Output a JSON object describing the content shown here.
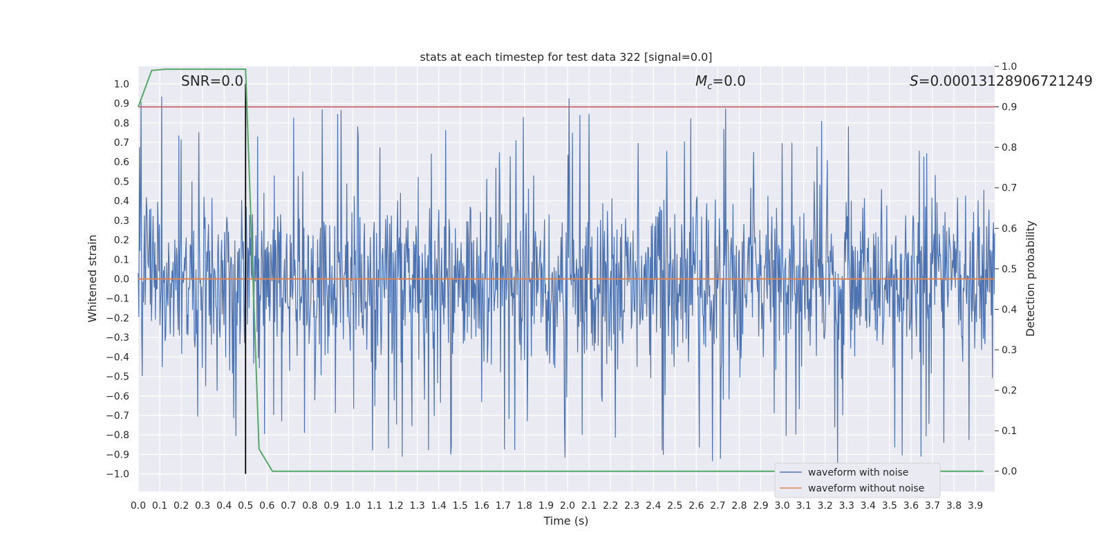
{
  "chart_data": {
    "type": "line",
    "title": "stats at each timestep for test data 322 [signal=0.0]",
    "xlabel": "Time (s)",
    "ylabel": "Whitened strain",
    "y2label": "Detection probability",
    "xlim": [
      0.0,
      3.99
    ],
    "ylim": [
      -1.09,
      1.09
    ],
    "y2lim": [
      -0.05,
      1.0
    ],
    "x_ticks": [
      "0.0",
      "0.1",
      "0.2",
      "0.3",
      "0.4",
      "0.5",
      "0.6",
      "0.7",
      "0.8",
      "0.9",
      "1.0",
      "1.1",
      "1.2",
      "1.3",
      "1.4",
      "1.5",
      "1.6",
      "1.7",
      "1.8",
      "1.9",
      "2.0",
      "2.1",
      "2.2",
      "2.3",
      "2.4",
      "2.5",
      "2.6",
      "2.7",
      "2.8",
      "2.9",
      "3.0",
      "3.1",
      "3.2",
      "3.3",
      "3.4",
      "3.5",
      "3.6",
      "3.7",
      "3.8",
      "3.9"
    ],
    "y_ticks": [
      "1.0",
      "0.9",
      "0.8",
      "0.7",
      "0.6",
      "0.5",
      "0.4",
      "0.3",
      "0.2",
      "0.1",
      "0.0",
      "−0.1",
      "−0.2",
      "−0.3",
      "−0.4",
      "−0.5",
      "−0.6",
      "−0.7",
      "−0.8",
      "−0.9",
      "−1.0"
    ],
    "y2_ticks": [
      "1.0",
      "0.9",
      "0.8",
      "0.7",
      "0.6",
      "0.5",
      "0.4",
      "0.3",
      "0.2",
      "0.1",
      "0.0"
    ],
    "grid": true,
    "legend_position": "lower-right",
    "annotations": {
      "snr": "SNR=0.0",
      "mc_symbol": "M",
      "mc_sub": "c",
      "mc_value": "=0.0",
      "s_symbol": "S",
      "s_value": "=0.00013128906721249"
    },
    "series": [
      {
        "name": "waveform with noise",
        "color": "#4c72b0",
        "style": "dense-noise",
        "typical_amplitude": 0.35,
        "peak_amplitude": 0.95
      },
      {
        "name": "waveform without noise",
        "color": "#dd8452",
        "values_constant": 0.0
      }
    ],
    "detection_probability": {
      "color": "#55a868",
      "x": [
        0.0,
        0.0625,
        0.125,
        0.1875,
        0.25,
        0.3125,
        0.375,
        0.4375,
        0.5,
        0.5625,
        0.625,
        0.6875,
        0.75,
        1.0,
        1.5,
        2.0,
        2.5,
        3.0,
        3.5,
        3.9375
      ],
      "y": [
        0.9,
        0.99,
        0.993,
        0.993,
        0.993,
        0.993,
        0.993,
        0.993,
        0.993,
        0.055,
        0.0,
        0.0,
        0.0,
        0.0,
        0.0,
        0.0,
        0.0,
        0.0,
        0.0,
        0.0
      ]
    },
    "threshold_prob": 0.9,
    "threshold_color": "#c44e52",
    "marker_x": 0.5
  }
}
